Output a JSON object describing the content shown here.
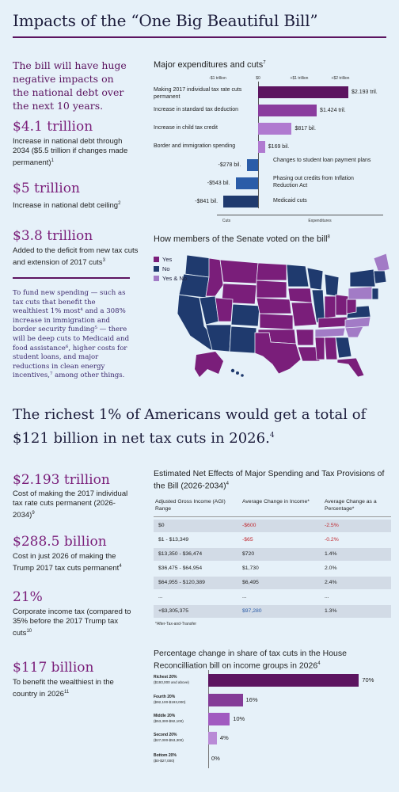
{
  "title": "Impacts of the “One Big Beautiful Bill”",
  "intro": "The bill will have huge negative impacts on the national debt over the next 10 years.",
  "stats_top": [
    {
      "value": "$4.1 trillion",
      "desc": "Increase in national debt through 2034 ($5.5 trillion if changes made permanent)",
      "sup": "1"
    },
    {
      "value": "$5 trillion",
      "desc": "Increase in national debt ceiling",
      "sup": "2"
    },
    {
      "value": "$3.8 trillion",
      "desc": "Added to the deficit from new tax cuts and extension of 2017 cuts",
      "sup": "3"
    }
  ],
  "funding_text": "To fund new spending — such as tax cuts that benefit the wealthiest 1% most⁴ and a 308% increase in immigration and border security funding⁵ — there will be deep cuts to Medicaid and food assistance⁶, higher costs for student loans, and major reductions in clean energy incentives,⁷ among other things.",
  "expenditures": {
    "title": "Major expenditures and cuts",
    "title_sup": "7",
    "ticks": [
      "-$1 trillion",
      "$0",
      "+$1 trillion",
      "+$2 trillion"
    ],
    "axis_left": "Cuts",
    "axis_right": "Expenditures",
    "colors": {
      "dark_purple": "#5c1460",
      "purple": "#8a3c9e",
      "light_purple": "#b07ad0",
      "dark_blue": "#1f3a6e",
      "blue": "#2a5ca8"
    }
  },
  "chart_data": [
    {
      "type": "bar",
      "title": "Major expenditures and cuts",
      "categories": [
        "Making 2017 individual tax rate cuts permanent",
        "Increase in standard tax deduction",
        "Increase in child tax credit",
        "Border and immigration spending",
        "Changes to student loan payment plans",
        "Phasing out credits from Inflation Reduction Act",
        "Medicaid cuts"
      ],
      "values": [
        2193,
        1424,
        817,
        169,
        -278,
        -543,
        -841
      ],
      "labels": [
        "$2.193 tril.",
        "$1.424 tril.",
        "$817 bil.",
        "$169 bil.",
        "-$278 bil.",
        "-$543 bil.",
        "-$841 bil."
      ],
      "unit": "billions USD",
      "xlim": [
        -1000,
        2500
      ]
    },
    {
      "type": "bar",
      "title": "Percentage change in share of tax cuts in the House Reconcilliation bill on income groups in 2026",
      "categories": [
        "Richest 20% ($193,000 and above)",
        "Fourth 20% ($92,100-$193,000)",
        "Middle 20% ($53,300-$92,100)",
        "Second 20% ($27,000-$53,300)",
        "Bottom 20% ($0-$27,000)"
      ],
      "values": [
        70,
        16,
        10,
        4,
        0
      ],
      "labels": [
        "70%",
        "16%",
        "10%",
        "4%",
        "0%"
      ],
      "xlim": [
        0,
        70
      ]
    }
  ],
  "senate": {
    "title": "How members of the Senate voted on the bill",
    "title_sup": "8",
    "legend": [
      {
        "label": "Yes",
        "color": "#7a1e7a"
      },
      {
        "label": "No",
        "color": "#1f3a6e"
      },
      {
        "label": "Yes & No",
        "color": "#a27bc6"
      }
    ]
  },
  "headline": "The richest 1% of Americans would get a total of $121 billion in net tax cuts in 2026.",
  "headline_sup": "4",
  "stats_bottom": [
    {
      "value": "$2.193 trillion",
      "desc": "Cost of making the 2017 individual tax rate cuts permanent (2026-2034)",
      "sup": "9"
    },
    {
      "value": "$288.5 billion",
      "desc": "Cost in just 2026 of making the Trump 2017 tax cuts permanent",
      "sup": "4"
    },
    {
      "value": "21%",
      "desc": "Corporate income tax (compared to 35% before the 2017 Trump tax cuts",
      "sup": "10"
    },
    {
      "value": "$117 billion",
      "desc": "To benefit the wealthiest in the country in 2026",
      "sup": "11"
    }
  ],
  "net_effects": {
    "title": "Estimated Net Effects of Major Spending and Tax Provisions of the Bill (2026-2034)",
    "title_sup": "4",
    "headers": [
      "Adjusted Gross Income (AGI) Range",
      "Average Change in Income*",
      "Average Change as a Percentage*"
    ],
    "rows": [
      [
        "$0",
        "-$600",
        "-2.5%"
      ],
      [
        "$1 - $13,349",
        "-$65",
        "-0.2%"
      ],
      [
        "$13,350 - $36,474",
        "$720",
        "1.4%"
      ],
      [
        "$36,475 - $64,954",
        "$1,730",
        "2.0%"
      ],
      [
        "$64,955 - $120,389",
        "$6,495",
        "2.4%"
      ],
      [
        "...",
        "...",
        "..."
      ],
      [
        "+$3,305,375",
        "$97,280",
        "1.3%"
      ]
    ],
    "note": "*After-Tax-and-Transfer"
  },
  "share": {
    "title": "Percentage change in share of tax cuts in the House Reconcilliation bill on income groups in 2026",
    "title_sup": "4",
    "groups": [
      {
        "name": "Richest 20%",
        "range": "($193,000 and above)",
        "label": "70%",
        "color": "#5c1460"
      },
      {
        "name": "Fourth 20%",
        "range": "($92,100-$193,000)",
        "label": "16%",
        "color": "#843b97"
      },
      {
        "name": "Middle 20%",
        "range": "($53,300-$92,100)",
        "label": "10%",
        "color": "#a15ac0"
      },
      {
        "name": "Second 20%",
        "range": "($27,000-$53,300)",
        "label": "4%",
        "color": "#b98ad6"
      },
      {
        "name": "Bottom 20%",
        "range": "($0-$27,000)",
        "label": "0%",
        "color": "#cfb5e6"
      }
    ]
  }
}
